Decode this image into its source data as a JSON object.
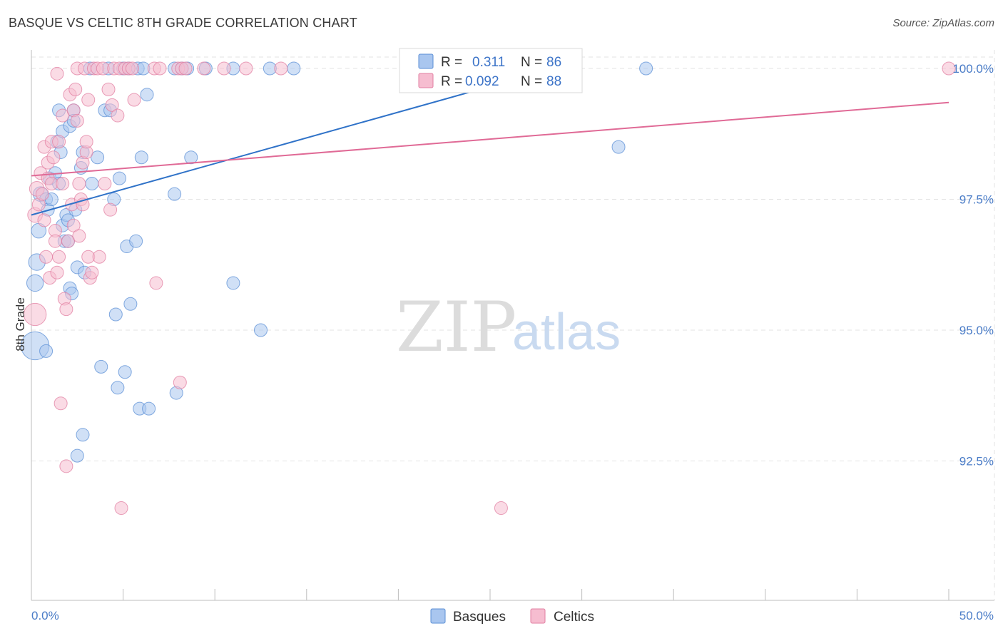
{
  "title": "BASQUE VS CELTIC 8TH GRADE CORRELATION CHART",
  "source": "Source: ZipAtlas.com",
  "watermark": {
    "zip": "ZIP",
    "atlas": "atlas"
  },
  "colors": {
    "blue_fill": "#a9c6ef",
    "blue_stroke": "#5b8fd6",
    "blue_line": "#2f72c8",
    "pink_fill": "#f6bdd0",
    "pink_stroke": "#e27fa2",
    "pink_line": "#e06a96",
    "tick_text": "#4a7cc7",
    "grid": "#e3e3e3"
  },
  "stats_legend": [
    {
      "r_label": "R =",
      "r_value": "0.311",
      "n_label": "N =",
      "n_value": "86"
    },
    {
      "r_label": "R =",
      "r_value": "0.092",
      "n_label": "N =",
      "n_value": "88"
    }
  ],
  "chart_data": {
    "type": "scatter",
    "title": "BASQUE VS CELTIC 8TH GRADE CORRELATION CHART",
    "xlabel": "",
    "ylabel": "8th Grade",
    "xlim": [
      0,
      50
    ],
    "ylim": [
      90.2,
      100.6
    ],
    "x_tick_labels": [
      "0.0%",
      "50.0%"
    ],
    "y_ticks": [
      92.5,
      95.0,
      97.5,
      100.0
    ],
    "y_tick_labels": [
      "92.5%",
      "95.0%",
      "97.5%",
      "100.0%"
    ],
    "grid": true,
    "legend_position": "bottom-center",
    "series": [
      {
        "name": "Basques",
        "r": 0.311,
        "n": 86,
        "trend": {
          "x": [
            0,
            28.5
          ],
          "y": [
            97.2,
            100.0
          ]
        },
        "points": [
          [
            0.2,
            94.7,
            28
          ],
          [
            0.2,
            95.9,
            16
          ],
          [
            0.3,
            96.3,
            16
          ],
          [
            0.4,
            96.9,
            14
          ],
          [
            0.5,
            97.6,
            14
          ],
          [
            0.8,
            94.6,
            12
          ],
          [
            0.8,
            97.5,
            12
          ],
          [
            0.9,
            97.3,
            12
          ],
          [
            1.0,
            97.9,
            12
          ],
          [
            1.1,
            97.5,
            12
          ],
          [
            1.3,
            98.0,
            12
          ],
          [
            1.4,
            98.6,
            12
          ],
          [
            1.5,
            97.8,
            12
          ],
          [
            1.5,
            99.2,
            12
          ],
          [
            1.6,
            98.4,
            12
          ],
          [
            1.7,
            97.0,
            12
          ],
          [
            1.7,
            98.8,
            12
          ],
          [
            1.8,
            96.7,
            12
          ],
          [
            1.9,
            97.2,
            12
          ],
          [
            2.0,
            97.1,
            12
          ],
          [
            2.0,
            96.7,
            12
          ],
          [
            2.1,
            95.8,
            12
          ],
          [
            2.1,
            98.9,
            12
          ],
          [
            2.2,
            95.7,
            12
          ],
          [
            2.3,
            99.2,
            12
          ],
          [
            2.3,
            99.0,
            12
          ],
          [
            2.4,
            97.3,
            12
          ],
          [
            2.5,
            92.6,
            12
          ],
          [
            2.5,
            96.2,
            12
          ],
          [
            2.7,
            98.1,
            12
          ],
          [
            2.8,
            98.4,
            12
          ],
          [
            2.8,
            93.0,
            12
          ],
          [
            2.9,
            96.1,
            12
          ],
          [
            3.2,
            100.0,
            12
          ],
          [
            3.3,
            97.8,
            12
          ],
          [
            3.6,
            98.3,
            12
          ],
          [
            3.8,
            94.3,
            12
          ],
          [
            4.0,
            99.2,
            12
          ],
          [
            4.2,
            100.0,
            12
          ],
          [
            4.3,
            99.2,
            12
          ],
          [
            4.5,
            97.5,
            12
          ],
          [
            4.6,
            95.3,
            12
          ],
          [
            4.7,
            93.9,
            12
          ],
          [
            4.8,
            97.9,
            12
          ],
          [
            5.0,
            100.0,
            12
          ],
          [
            5.1,
            94.2,
            12
          ],
          [
            5.2,
            96.6,
            12
          ],
          [
            5.3,
            100.0,
            12
          ],
          [
            5.4,
            95.5,
            12
          ],
          [
            5.7,
            96.7,
            12
          ],
          [
            5.8,
            100.0,
            12
          ],
          [
            5.9,
            93.5,
            12
          ],
          [
            6.0,
            98.3,
            12
          ],
          [
            6.1,
            100.0,
            12
          ],
          [
            6.3,
            99.5,
            12
          ],
          [
            6.4,
            93.5,
            12
          ],
          [
            7.8,
            100.0,
            12
          ],
          [
            7.8,
            97.6,
            12
          ],
          [
            7.9,
            93.8,
            12
          ],
          [
            8.2,
            100.0,
            12
          ],
          [
            8.5,
            100.0,
            12
          ],
          [
            8.7,
            98.3,
            12
          ],
          [
            9.5,
            100.0,
            12
          ],
          [
            11.0,
            100.0,
            12
          ],
          [
            11.0,
            95.9,
            12
          ],
          [
            12.5,
            95.0,
            12
          ],
          [
            13.0,
            100.0,
            12
          ],
          [
            14.3,
            100.0,
            12
          ],
          [
            20.5,
            100.0,
            12
          ],
          [
            23.0,
            100.0,
            12
          ],
          [
            28.0,
            100.0,
            12
          ],
          [
            32.0,
            98.5,
            12
          ],
          [
            33.5,
            100.0,
            12
          ]
        ]
      },
      {
        "name": "Celtics",
        "r": 0.092,
        "n": 88,
        "trend": {
          "x": [
            0,
            50
          ],
          "y": [
            97.95,
            99.35
          ]
        },
        "points": [
          [
            0.2,
            95.3,
            22
          ],
          [
            0.2,
            97.2,
            14
          ],
          [
            0.3,
            97.7,
            14
          ],
          [
            0.4,
            97.4,
            12
          ],
          [
            0.5,
            98.0,
            12
          ],
          [
            0.6,
            97.6,
            12
          ],
          [
            0.7,
            98.5,
            12
          ],
          [
            0.7,
            97.1,
            12
          ],
          [
            0.8,
            96.4,
            12
          ],
          [
            0.9,
            98.2,
            12
          ],
          [
            0.9,
            97.9,
            12
          ],
          [
            1.0,
            96.0,
            12
          ],
          [
            1.1,
            98.6,
            12
          ],
          [
            1.1,
            97.8,
            12
          ],
          [
            1.2,
            98.3,
            12
          ],
          [
            1.3,
            96.9,
            12
          ],
          [
            1.3,
            96.7,
            12
          ],
          [
            1.4,
            96.1,
            12
          ],
          [
            1.4,
            99.9,
            12
          ],
          [
            1.5,
            98.6,
            12
          ],
          [
            1.5,
            96.4,
            12
          ],
          [
            1.6,
            93.6,
            12
          ],
          [
            1.7,
            99.1,
            12
          ],
          [
            1.7,
            97.8,
            12
          ],
          [
            1.8,
            95.6,
            12
          ],
          [
            1.9,
            92.4,
            12
          ],
          [
            1.9,
            95.4,
            12
          ],
          [
            2.0,
            96.7,
            12
          ],
          [
            2.1,
            99.5,
            12
          ],
          [
            2.2,
            97.4,
            12
          ],
          [
            2.3,
            99.2,
            12
          ],
          [
            2.3,
            97.0,
            12
          ],
          [
            2.4,
            99.6,
            12
          ],
          [
            2.5,
            99.0,
            12
          ],
          [
            2.5,
            100.0,
            12
          ],
          [
            2.6,
            96.8,
            12
          ],
          [
            2.6,
            97.8,
            12
          ],
          [
            2.7,
            97.5,
            12
          ],
          [
            2.8,
            98.2,
            12
          ],
          [
            2.8,
            97.4,
            12
          ],
          [
            2.9,
            100.0,
            12
          ],
          [
            3.0,
            98.4,
            12
          ],
          [
            3.0,
            98.6,
            12
          ],
          [
            3.1,
            99.4,
            12
          ],
          [
            3.1,
            96.4,
            12
          ],
          [
            3.2,
            96.0,
            12
          ],
          [
            3.3,
            96.1,
            12
          ],
          [
            3.4,
            100.0,
            12
          ],
          [
            3.6,
            100.0,
            12
          ],
          [
            3.7,
            96.4,
            12
          ],
          [
            3.9,
            100.0,
            12
          ],
          [
            4.0,
            97.8,
            12
          ],
          [
            4.2,
            99.6,
            12
          ],
          [
            4.3,
            97.3,
            12
          ],
          [
            4.4,
            99.3,
            12
          ],
          [
            4.5,
            100.0,
            12
          ],
          [
            4.7,
            99.1,
            12
          ],
          [
            4.8,
            100.0,
            12
          ],
          [
            4.9,
            91.6,
            12
          ],
          [
            5.1,
            100.0,
            12
          ],
          [
            5.3,
            100.0,
            12
          ],
          [
            5.5,
            100.0,
            12
          ],
          [
            5.6,
            99.4,
            12
          ],
          [
            6.7,
            100.0,
            12
          ],
          [
            6.8,
            95.9,
            12
          ],
          [
            7.0,
            100.0,
            12
          ],
          [
            8.0,
            100.0,
            12
          ],
          [
            8.1,
            94.0,
            12
          ],
          [
            8.2,
            100.0,
            12
          ],
          [
            8.4,
            100.0,
            12
          ],
          [
            9.4,
            100.0,
            12
          ],
          [
            10.5,
            100.0,
            12
          ],
          [
            11.7,
            100.0,
            12
          ],
          [
            13.6,
            100.0,
            12
          ],
          [
            25.6,
            91.6,
            12
          ],
          [
            50.0,
            100.0,
            12
          ]
        ]
      }
    ]
  },
  "bottom_legend": [
    {
      "label": "Basques"
    },
    {
      "label": "Celtics"
    }
  ]
}
